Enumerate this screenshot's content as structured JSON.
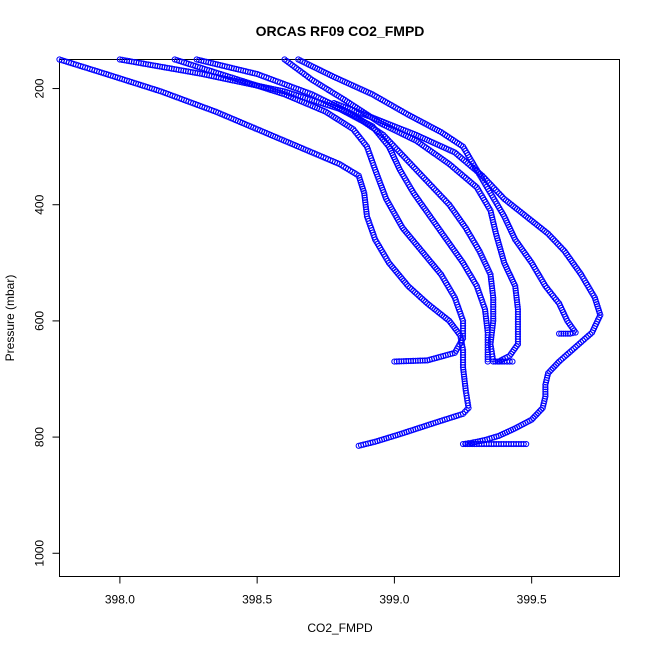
{
  "chart_data": {
    "type": "scatter",
    "title": "ORCAS RF09 CO2_FMPD",
    "xlabel": "CO2_FMPD",
    "ylabel": "Pressure (mbar)",
    "xlim": [
      397.78,
      399.82
    ],
    "ylim": [
      1040,
      150
    ],
    "y_reversed": true,
    "x_ticks": [
      398.0,
      398.5,
      399.0,
      399.5
    ],
    "x_tick_labels": [
      "398.0",
      "398.5",
      "399.0",
      "399.5"
    ],
    "y_ticks": [
      200,
      400,
      600,
      800,
      1000
    ],
    "y_tick_labels": [
      "200",
      "400",
      "600",
      "800",
      "1000"
    ],
    "marker": "open-circle",
    "point_color": "#0000ff",
    "series": [
      {
        "x": [
          397.78,
          397.95,
          398.15,
          398.35,
          398.55,
          398.7,
          398.8,
          398.87,
          398.89,
          398.9,
          398.93,
          398.98,
          399.05,
          399.12,
          399.2,
          399.24,
          399.25,
          399.25,
          399.26,
          399.27,
          399.25,
          399.15,
          399.02,
          398.93,
          398.87
        ],
        "y": [
          150,
          175,
          205,
          240,
          280,
          310,
          330,
          350,
          380,
          420,
          460,
          500,
          540,
          570,
          600,
          625,
          650,
          680,
          720,
          750,
          760,
          775,
          795,
          808,
          815
        ]
      },
      {
        "x": [
          398.2,
          398.4,
          398.6,
          398.75,
          398.85,
          398.9,
          398.93,
          398.97,
          399.03,
          399.1,
          399.17,
          399.22,
          399.25,
          399.25,
          399.22,
          399.12,
          399.0
        ],
        "y": [
          150,
          180,
          210,
          240,
          270,
          300,
          340,
          390,
          440,
          480,
          520,
          560,
          600,
          630,
          655,
          668,
          670
        ]
      },
      {
        "x": [
          398.0,
          398.3,
          398.6,
          398.8,
          398.92,
          398.98,
          399.02,
          399.07,
          399.13,
          399.19,
          399.25,
          399.3,
          399.33,
          399.34,
          399.34,
          399.34
        ],
        "y": [
          150,
          175,
          205,
          235,
          265,
          300,
          340,
          380,
          420,
          460,
          500,
          540,
          580,
          620,
          650,
          670
        ]
      },
      {
        "x": [
          398.28,
          398.5,
          398.7,
          398.85,
          398.96,
          399.04,
          399.12,
          399.2,
          399.26,
          399.31,
          399.35,
          399.36,
          399.36,
          399.35,
          399.36,
          399.4,
          399.43
        ],
        "y": [
          150,
          175,
          210,
          245,
          280,
          320,
          360,
          400,
          440,
          480,
          520,
          560,
          600,
          640,
          670,
          670,
          670
        ]
      },
      {
        "x": [
          398.6,
          398.7,
          398.82,
          398.95,
          399.08,
          399.2,
          399.3,
          399.35,
          399.37,
          399.4,
          399.44,
          399.45,
          399.45,
          399.45,
          399.42,
          399.38
        ],
        "y": [
          150,
          185,
          220,
          260,
          290,
          330,
          370,
          410,
          450,
          500,
          540,
          580,
          610,
          640,
          660,
          670
        ]
      },
      {
        "x": [
          398.65,
          398.78,
          398.92,
          399.05,
          399.17,
          399.25,
          399.3,
          399.35,
          399.4,
          399.44,
          399.5,
          399.55,
          399.6,
          399.63,
          399.66,
          399.64,
          399.6
        ],
        "y": [
          150,
          180,
          210,
          245,
          275,
          300,
          340,
          380,
          420,
          460,
          500,
          540,
          570,
          600,
          620,
          622,
          622
        ]
      },
      {
        "x": [
          398.78,
          398.92,
          399.08,
          399.22,
          399.32,
          399.4,
          399.48,
          399.56,
          399.62,
          399.68,
          399.73,
          399.75,
          399.72,
          399.66,
          399.6,
          399.56,
          399.55,
          399.55,
          399.54,
          399.5,
          399.44,
          399.38,
          399.33,
          399.28,
          399.25,
          399.3,
          399.38,
          399.48
        ],
        "y": [
          225,
          250,
          280,
          310,
          350,
          390,
          420,
          450,
          480,
          520,
          560,
          590,
          620,
          645,
          670,
          690,
          710,
          730,
          750,
          770,
          785,
          798,
          805,
          810,
          812,
          812,
          812,
          812
        ]
      }
    ]
  }
}
